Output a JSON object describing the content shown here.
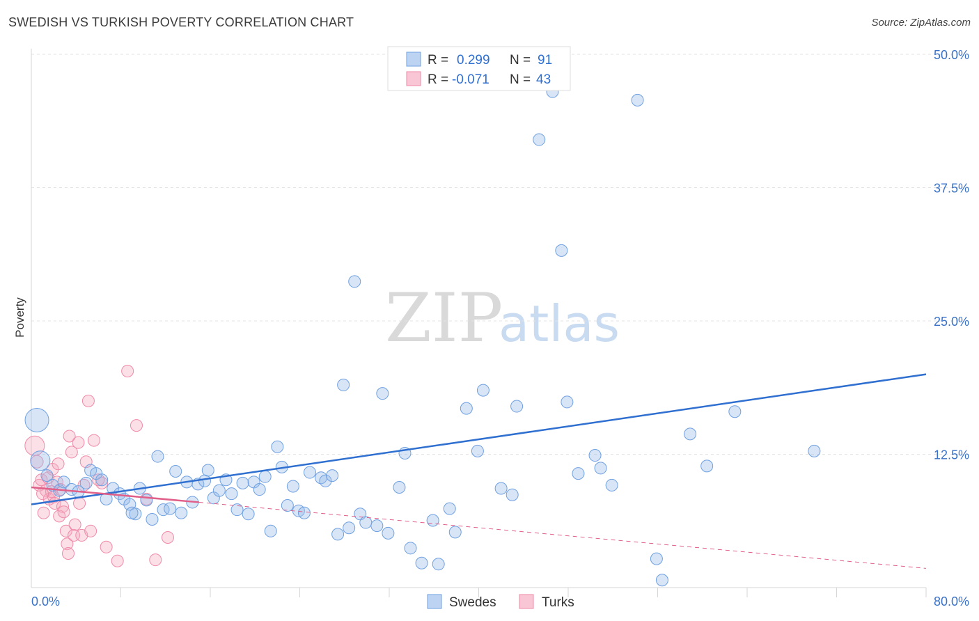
{
  "title": "SWEDISH VS TURKISH POVERTY CORRELATION CHART",
  "source": "Source: ZipAtlas.com",
  "watermark": {
    "zip": "ZIP",
    "atlas": "atlas"
  },
  "colors": {
    "swedes": "#6fa0e0",
    "turks": "#f08aa8",
    "swedes_line": "#2f6fd0",
    "turks_line": "#e0608a",
    "axis_text": "#3a72c8"
  },
  "legend": {
    "rows": [
      {
        "r_label": "R =",
        "r_value": "0.299",
        "n_label": "N =",
        "n_value": "91"
      },
      {
        "r_label": "R =",
        "r_value": "-0.071",
        "n_label": "N =",
        "n_value": "43"
      }
    ]
  },
  "chart_data": {
    "type": "scatter",
    "title": "SWEDISH VS TURKISH POVERTY CORRELATION CHART",
    "xlabel": "",
    "ylabel": "Poverty",
    "xlim": [
      0,
      80
    ],
    "ylim": [
      0,
      50
    ],
    "x_tick_labels": [
      "0.0%",
      "80.0%"
    ],
    "y_ticks": [
      12.5,
      25.0,
      37.5,
      50.0
    ],
    "y_tick_labels": [
      "12.5%",
      "25.0%",
      "37.5%",
      "50.0%"
    ],
    "grid": true,
    "legend_position": "top-center",
    "series": [
      {
        "name": "Swedes",
        "r": 0.299,
        "n": 91,
        "trend": {
          "x": [
            0,
            80
          ],
          "y": [
            7.8,
            20.0
          ]
        },
        "points": [
          [
            0.5,
            15.7
          ],
          [
            0.8,
            11.9
          ],
          [
            1.4,
            10.5
          ],
          [
            1.9,
            9.6
          ],
          [
            2.5,
            9.1
          ],
          [
            2.9,
            9.9
          ],
          [
            3.6,
            9.2
          ],
          [
            4.2,
            9.0
          ],
          [
            4.9,
            9.8
          ],
          [
            5.3,
            11.0
          ],
          [
            5.8,
            10.7
          ],
          [
            6.3,
            10.1
          ],
          [
            6.7,
            8.3
          ],
          [
            7.3,
            9.3
          ],
          [
            7.9,
            8.8
          ],
          [
            8.3,
            8.3
          ],
          [
            8.8,
            7.8
          ],
          [
            9.3,
            6.9
          ],
          [
            9.7,
            9.3
          ],
          [
            10.3,
            8.2
          ],
          [
            10.8,
            6.4
          ],
          [
            11.3,
            12.3
          ],
          [
            11.8,
            7.3
          ],
          [
            12.4,
            7.4
          ],
          [
            12.9,
            10.9
          ],
          [
            13.4,
            7.0
          ],
          [
            13.9,
            9.9
          ],
          [
            14.4,
            8.0
          ],
          [
            14.9,
            9.7
          ],
          [
            15.5,
            10.0
          ],
          [
            15.8,
            11.0
          ],
          [
            16.3,
            8.4
          ],
          [
            16.8,
            9.1
          ],
          [
            17.4,
            10.1
          ],
          [
            17.9,
            8.8
          ],
          [
            18.4,
            7.3
          ],
          [
            18.9,
            9.8
          ],
          [
            19.4,
            6.9
          ],
          [
            19.9,
            9.9
          ],
          [
            20.4,
            9.2
          ],
          [
            20.9,
            10.4
          ],
          [
            21.4,
            5.3
          ],
          [
            22.0,
            13.2
          ],
          [
            22.4,
            11.3
          ],
          [
            22.9,
            7.7
          ],
          [
            23.4,
            9.5
          ],
          [
            23.9,
            7.2
          ],
          [
            24.4,
            7.0
          ],
          [
            24.9,
            10.8
          ],
          [
            25.9,
            10.3
          ],
          [
            26.3,
            10.0
          ],
          [
            26.9,
            10.5
          ],
          [
            27.4,
            5.0
          ],
          [
            27.9,
            19.0
          ],
          [
            28.4,
            5.6
          ],
          [
            28.9,
            28.7
          ],
          [
            29.4,
            6.9
          ],
          [
            29.9,
            6.1
          ],
          [
            30.9,
            5.8
          ],
          [
            31.4,
            18.2
          ],
          [
            31.9,
            5.1
          ],
          [
            32.9,
            9.4
          ],
          [
            33.4,
            12.6
          ],
          [
            33.9,
            3.7
          ],
          [
            34.9,
            2.3
          ],
          [
            35.9,
            6.3
          ],
          [
            36.4,
            2.2
          ],
          [
            37.4,
            7.4
          ],
          [
            37.9,
            5.2
          ],
          [
            38.9,
            16.8
          ],
          [
            39.9,
            12.8
          ],
          [
            40.4,
            18.5
          ],
          [
            42.0,
            9.3
          ],
          [
            43.0,
            8.7
          ],
          [
            43.4,
            17.0
          ],
          [
            45.4,
            42.0
          ],
          [
            46.6,
            46.5
          ],
          [
            47.4,
            31.6
          ],
          [
            47.9,
            17.4
          ],
          [
            48.9,
            10.7
          ],
          [
            50.4,
            12.4
          ],
          [
            50.9,
            11.2
          ],
          [
            51.9,
            9.6
          ],
          [
            54.2,
            45.7
          ],
          [
            55.9,
            2.7
          ],
          [
            56.4,
            0.7
          ],
          [
            58.9,
            14.4
          ],
          [
            60.4,
            11.4
          ],
          [
            62.9,
            16.5
          ],
          [
            70.0,
            12.8
          ],
          [
            9.0,
            7.0
          ]
        ]
      },
      {
        "name": "Turks",
        "r": -0.071,
        "n": 43,
        "trend": {
          "x": [
            0,
            15
          ],
          "y": [
            9.4,
            8.0
          ]
        },
        "trend_dashed": {
          "x": [
            15,
            80
          ],
          "y": [
            8.0,
            1.8
          ]
        },
        "points": [
          [
            0.3,
            13.3
          ],
          [
            0.5,
            11.8
          ],
          [
            0.7,
            9.6
          ],
          [
            0.9,
            10.1
          ],
          [
            1.1,
            7.0
          ],
          [
            1.3,
            9.1
          ],
          [
            1.5,
            10.3
          ],
          [
            1.6,
            8.3
          ],
          [
            1.8,
            9.0
          ],
          [
            1.9,
            11.1
          ],
          [
            2.0,
            8.5
          ],
          [
            2.1,
            7.9
          ],
          [
            2.3,
            9.9
          ],
          [
            2.4,
            11.6
          ],
          [
            2.5,
            6.7
          ],
          [
            2.6,
            9.2
          ],
          [
            2.8,
            7.6
          ],
          [
            2.9,
            7.1
          ],
          [
            3.1,
            5.3
          ],
          [
            3.2,
            4.1
          ],
          [
            3.3,
            3.2
          ],
          [
            3.4,
            14.2
          ],
          [
            3.6,
            12.7
          ],
          [
            3.8,
            4.9
          ],
          [
            3.9,
            5.9
          ],
          [
            4.2,
            13.6
          ],
          [
            4.3,
            7.9
          ],
          [
            4.5,
            4.9
          ],
          [
            4.7,
            9.6
          ],
          [
            4.9,
            11.8
          ],
          [
            5.1,
            17.5
          ],
          [
            5.3,
            5.3
          ],
          [
            5.6,
            13.8
          ],
          [
            6.3,
            9.8
          ],
          [
            6.7,
            3.8
          ],
          [
            7.7,
            2.5
          ],
          [
            8.6,
            20.3
          ],
          [
            9.4,
            15.2
          ],
          [
            10.3,
            8.3
          ],
          [
            11.1,
            2.6
          ],
          [
            12.2,
            4.7
          ],
          [
            6.0,
            10.1
          ],
          [
            1.0,
            8.8
          ]
        ]
      }
    ]
  },
  "bottom_legend": [
    {
      "label": "Swedes"
    },
    {
      "label": "Turks"
    }
  ]
}
